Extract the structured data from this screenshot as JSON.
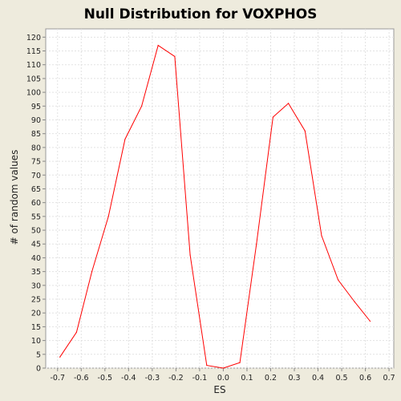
{
  "chart_data": {
    "type": "line",
    "title": "Null Distribution for VOXPHOS",
    "xlabel": "ES",
    "ylabel": "# of random values",
    "xlim": [
      -0.75,
      0.72
    ],
    "ylim": [
      0,
      123
    ],
    "x_ticks": [
      -0.7,
      -0.6,
      -0.5,
      -0.4,
      -0.3,
      -0.2,
      -0.1,
      0.0,
      0.1,
      0.2,
      0.3,
      0.4,
      0.5,
      0.6,
      0.7
    ],
    "y_ticks": [
      0,
      5,
      10,
      15,
      20,
      25,
      30,
      35,
      40,
      45,
      50,
      55,
      60,
      65,
      70,
      75,
      80,
      85,
      90,
      95,
      100,
      105,
      110,
      115,
      120
    ],
    "grid": true,
    "series": [
      {
        "color": "#ff0000",
        "x": [
          -0.69,
          -0.62,
          -0.555,
          -0.485,
          -0.415,
          -0.345,
          -0.275,
          -0.205,
          -0.14,
          -0.07,
          0.0,
          0.07,
          0.14,
          0.21,
          0.275,
          0.345,
          0.415,
          0.485,
          0.555,
          0.62
        ],
        "y": [
          4,
          13,
          35,
          55,
          83,
          95,
          117,
          113,
          41,
          1,
          0,
          2,
          45,
          91,
          96,
          86,
          48,
          32,
          24,
          17
        ]
      }
    ]
  }
}
